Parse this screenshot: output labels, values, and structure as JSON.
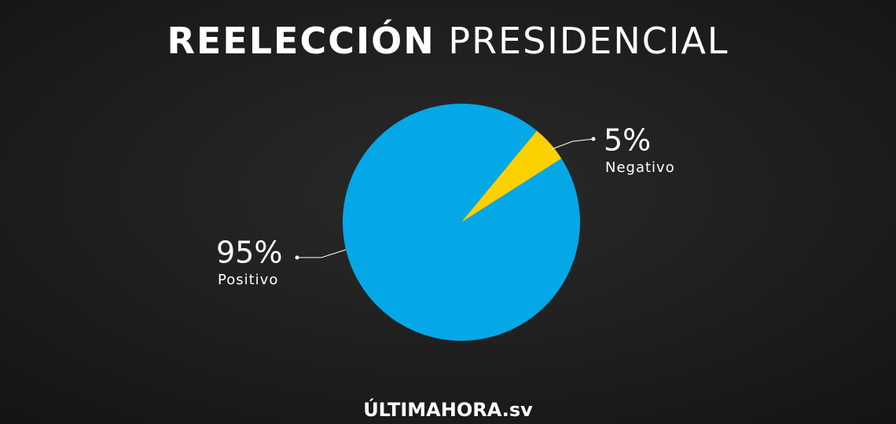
{
  "chart_data": {
    "type": "pie",
    "title": "REELECCIÓN PRESIDENCIAL",
    "categories": [
      "Positivo",
      "Negativo"
    ],
    "values": [
      95,
      5
    ],
    "value_labels": [
      "95%",
      "5%"
    ],
    "colors": [
      "#04a8e7",
      "#fdd100"
    ],
    "footer": "ÚLTIMAHORA.sv"
  }
}
